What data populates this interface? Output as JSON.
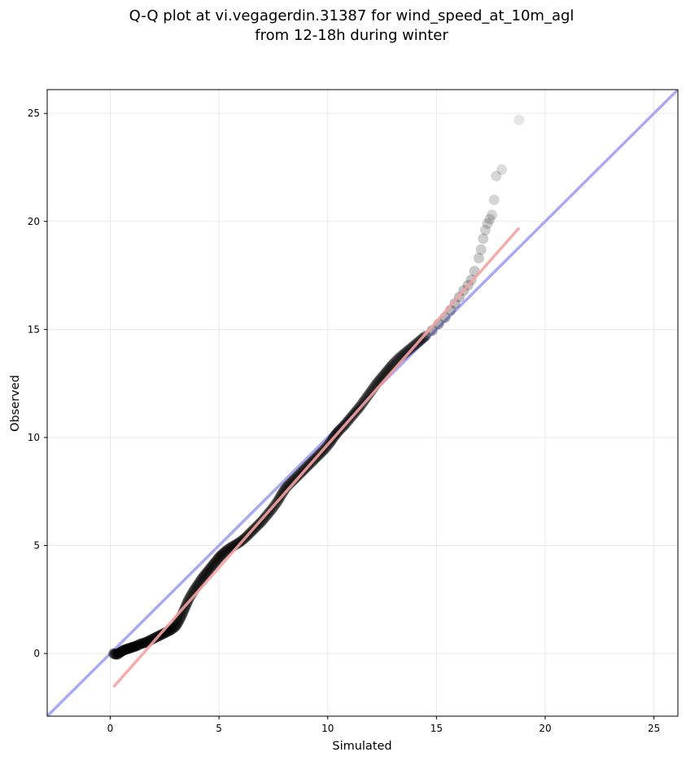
{
  "chart_data": {
    "type": "scatter",
    "title_lines": [
      "Q-Q plot at vi.vegagerdin.31387 for wind_speed_at_10m_agl",
      "from 12-18h during winter"
    ],
    "xlabel": "Simulated",
    "ylabel": "Observed",
    "xlim": [
      -2.9,
      26.1
    ],
    "ylim": [
      -2.9,
      26.1
    ],
    "xticks": [
      0,
      5,
      10,
      15,
      20,
      25
    ],
    "yticks": [
      0,
      5,
      10,
      15,
      20,
      25
    ],
    "grid": true,
    "colors": {
      "points": "#000000",
      "identity_line": "#aaaaf2",
      "fit_line": "#f4a3a3",
      "grid": "#e9e9e9"
    },
    "identity_line": {
      "x": [
        -2.9,
        26.1
      ],
      "y": [
        -2.9,
        26.1
      ]
    },
    "fit_line": {
      "x": [
        0.15,
        18.8
      ],
      "y": [
        -1.55,
        19.7
      ]
    },
    "points": [
      [
        0.15,
        0.0
      ],
      [
        0.3,
        -0.05
      ],
      [
        0.45,
        0.05
      ],
      [
        0.6,
        0.15
      ],
      [
        0.75,
        0.2
      ],
      [
        0.9,
        0.25
      ],
      [
        1.05,
        0.3
      ],
      [
        1.2,
        0.35
      ],
      [
        1.4,
        0.45
      ],
      [
        1.6,
        0.5
      ],
      [
        1.8,
        0.6
      ],
      [
        2.0,
        0.7
      ],
      [
        2.2,
        0.8
      ],
      [
        2.4,
        0.9
      ],
      [
        2.6,
        1.0
      ],
      [
        2.8,
        1.1
      ],
      [
        3.0,
        1.25
      ],
      [
        3.15,
        1.5
      ],
      [
        3.3,
        1.8
      ],
      [
        3.45,
        2.15
      ],
      [
        3.6,
        2.5
      ],
      [
        3.8,
        2.85
      ],
      [
        4.0,
        3.15
      ],
      [
        4.2,
        3.45
      ],
      [
        4.4,
        3.7
      ],
      [
        4.6,
        3.95
      ],
      [
        4.8,
        4.2
      ],
      [
        5.0,
        4.45
      ],
      [
        5.2,
        4.65
      ],
      [
        5.45,
        4.85
      ],
      [
        5.7,
        5.0
      ],
      [
        5.95,
        5.15
      ],
      [
        6.2,
        5.35
      ],
      [
        6.45,
        5.6
      ],
      [
        6.7,
        5.85
      ],
      [
        6.95,
        6.1
      ],
      [
        7.2,
        6.4
      ],
      [
        7.45,
        6.7
      ],
      [
        7.7,
        7.05
      ],
      [
        7.9,
        7.4
      ],
      [
        8.1,
        7.7
      ],
      [
        8.35,
        7.95
      ],
      [
        8.6,
        8.2
      ],
      [
        8.85,
        8.45
      ],
      [
        9.1,
        8.7
      ],
      [
        9.35,
        8.95
      ],
      [
        9.6,
        9.2
      ],
      [
        9.85,
        9.45
      ],
      [
        10.1,
        9.75
      ],
      [
        10.3,
        10.05
      ],
      [
        10.5,
        10.3
      ],
      [
        10.75,
        10.55
      ],
      [
        11.0,
        10.85
      ],
      [
        11.25,
        11.15
      ],
      [
        11.5,
        11.45
      ],
      [
        11.75,
        11.8
      ],
      [
        12.0,
        12.15
      ],
      [
        12.25,
        12.5
      ],
      [
        12.5,
        12.8
      ],
      [
        12.75,
        13.1
      ],
      [
        13.0,
        13.4
      ],
      [
        13.3,
        13.7
      ],
      [
        13.6,
        13.95
      ],
      [
        13.9,
        14.2
      ],
      [
        14.2,
        14.45
      ],
      [
        14.5,
        14.7
      ],
      [
        14.8,
        14.95
      ],
      [
        15.1,
        15.25
      ],
      [
        15.4,
        15.55
      ],
      [
        15.65,
        15.9
      ],
      [
        15.85,
        16.2
      ],
      [
        16.05,
        16.5
      ],
      [
        16.25,
        16.8
      ],
      [
        16.45,
        17.05
      ],
      [
        16.6,
        17.3
      ],
      [
        16.75,
        17.7
      ],
      [
        16.95,
        18.3
      ],
      [
        17.05,
        18.7
      ],
      [
        17.15,
        19.2
      ],
      [
        17.25,
        19.6
      ],
      [
        17.35,
        19.9
      ],
      [
        17.45,
        20.1
      ],
      [
        17.55,
        20.3
      ],
      [
        17.65,
        21.0
      ],
      [
        17.75,
        22.1
      ],
      [
        18.0,
        22.4
      ],
      [
        18.8,
        24.7
      ]
    ]
  }
}
